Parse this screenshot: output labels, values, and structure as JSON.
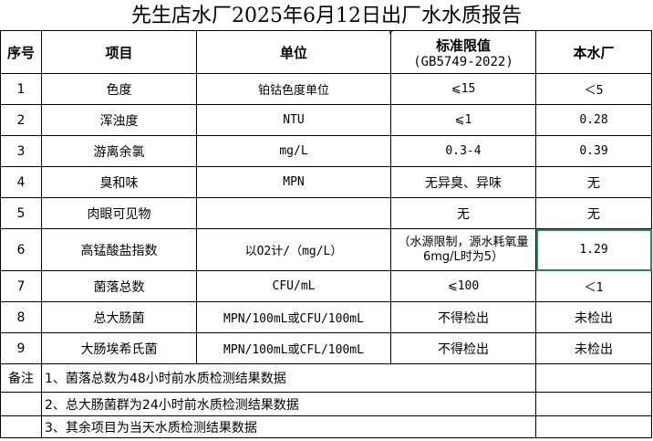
{
  "title": "先生店水厂2025年6月12日出厂水水质报告",
  "headers": {
    "seq": "序号",
    "item": "项目",
    "unit": "单位",
    "limit": "标准限值",
    "limit_sub": "(GB5749-2022)",
    "plant": "本水厂"
  },
  "rows": [
    {
      "seq": "1",
      "item": "色度",
      "unit": "铂钴色度单位",
      "limit": "⩽15",
      "value": "＜5"
    },
    {
      "seq": "2",
      "item": "浑浊度",
      "unit": "NTU",
      "limit": "⩽1",
      "value": "0.28"
    },
    {
      "seq": "3",
      "item": "游离余氯",
      "unit": "mg/L",
      "limit": "0.3-4",
      "value": "0.39"
    },
    {
      "seq": "4",
      "item": "臭和味",
      "unit": "MPN",
      "limit": "无异臭、异味",
      "value": "无"
    },
    {
      "seq": "5",
      "item": "肉眼可见物",
      "unit": "",
      "limit": "无",
      "value": "无"
    },
    {
      "seq": "6",
      "item": "高锰酸盐指数",
      "unit": "以O2计/（mg/L）",
      "limit": "（水源限制，源水耗氧量6mg/L时为5）",
      "value": "1.29"
    },
    {
      "seq": "7",
      "item": "菌落总数",
      "unit": "CFU/mL",
      "limit": "⩽100",
      "value": "＜1"
    },
    {
      "seq": "8",
      "item": "总大肠菌",
      "unit": "MPN/100mL或CFU/100mL",
      "limit": "不得检出",
      "value": "未检出"
    },
    {
      "seq": "9",
      "item": "大肠埃希氏菌",
      "unit": "MPN/100mL或CFL/100mL",
      "limit": "不得检出",
      "value": "未检出"
    }
  ],
  "notes": {
    "label": "备注",
    "items": [
      "1、菌落总数为48小时前水质检测结果数据",
      "2、总大肠菌群为24小时前水质检测结果数据",
      "3、其余项目为当天水质检测结果数据"
    ]
  },
  "colors": {
    "selection": "#1e8e5a"
  }
}
